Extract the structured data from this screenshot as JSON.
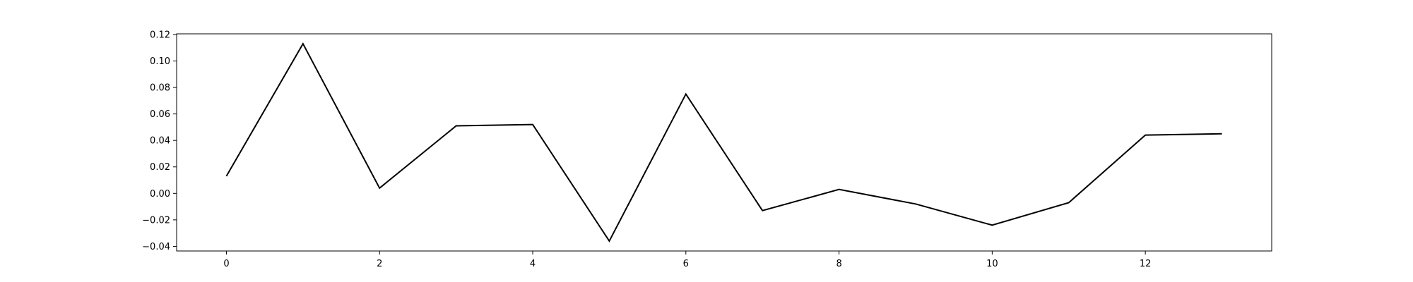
{
  "chart_data": {
    "type": "line",
    "title": "",
    "xlabel": "",
    "ylabel": "",
    "xlim": [
      -0.65,
      13.65
    ],
    "ylim": [
      -0.0435,
      0.1205
    ],
    "grid": false,
    "x": [
      0,
      1,
      2,
      3,
      4,
      5,
      6,
      7,
      8,
      9,
      10,
      11,
      12,
      13
    ],
    "series": [
      {
        "name": "",
        "color": "#000000",
        "values": [
          0.013,
          0.113,
          0.004,
          0.051,
          0.052,
          -0.036,
          0.075,
          -0.013,
          0.003,
          -0.008,
          -0.024,
          -0.007,
          0.044,
          0.045
        ]
      }
    ],
    "x_ticks": [
      0,
      2,
      4,
      6,
      8,
      10,
      12
    ],
    "x_tick_labels": [
      "0",
      "2",
      "4",
      "6",
      "8",
      "10",
      "12"
    ],
    "y_ticks": [
      -0.04,
      -0.02,
      0.0,
      0.02,
      0.04,
      0.06,
      0.08,
      0.1,
      0.12
    ],
    "y_tick_labels": [
      "−0.04",
      "−0.02",
      "0.00",
      "0.02",
      "0.04",
      "0.06",
      "0.08",
      "0.10",
      "0.12"
    ]
  }
}
